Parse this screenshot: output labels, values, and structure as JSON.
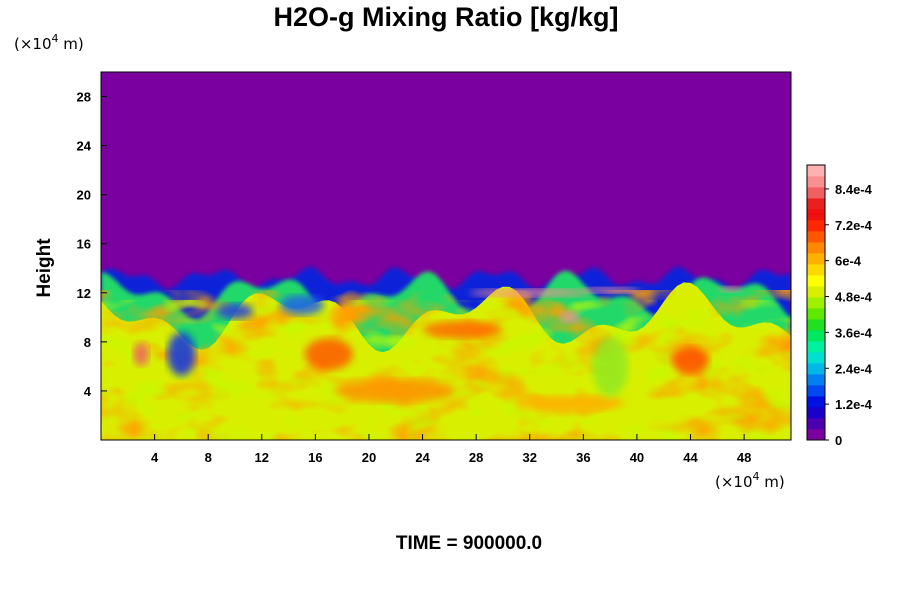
{
  "chart_data": {
    "type": "heatmap",
    "title": "H2O-g Mixing Ratio [kg/kg]",
    "ylabel": "Height",
    "x_unit_label": "(×10",
    "x_unit_exp": "4",
    "x_unit_suffix": " m)",
    "y_unit_label": "(×10",
    "y_unit_exp": "4",
    "y_unit_suffix": " m)",
    "xlim": [
      0,
      51.5
    ],
    "ylim": [
      0,
      30
    ],
    "x_ticks": [
      4,
      8,
      12,
      16,
      20,
      24,
      28,
      32,
      36,
      40,
      44,
      48
    ],
    "x_tick_labels": [
      "4",
      "8",
      "12",
      "16",
      "20",
      "24",
      "28",
      "32",
      "36",
      "40",
      "44",
      "48"
    ],
    "y_ticks": [
      4,
      8,
      12,
      16,
      20,
      24,
      28
    ],
    "y_tick_labels": [
      "4",
      "8",
      "12",
      "16",
      "20",
      "24",
      "28"
    ],
    "colorbar": {
      "min": 0,
      "max": 0.00092,
      "tick_values": [
        0,
        0.00012,
        0.00024,
        0.00036,
        0.00048,
        0.0006,
        0.00072,
        0.00084
      ],
      "tick_labels": [
        "0",
        "1.2e-4",
        "2.4e-4",
        "3.6e-4",
        "4.8e-4",
        "6e-4",
        "7.2e-4",
        "8.4e-4"
      ],
      "colors": [
        "#7a00a0",
        "#4b00b0",
        "#1a00c8",
        "#0010e0",
        "#0048f0",
        "#0080f0",
        "#00b8e8",
        "#00e0d0",
        "#00f0a0",
        "#00e860",
        "#20e020",
        "#60e800",
        "#a0f000",
        "#d8f000",
        "#ffff00",
        "#ffd800",
        "#ffb000",
        "#ff8800",
        "#ff5800",
        "#ff2800",
        "#f01010",
        "#e82020",
        "#f06060",
        "#f89090",
        "#ffb0b0"
      ]
    },
    "boundary_layer_top": 13.2,
    "time_label": "TIME = 900000.0"
  }
}
